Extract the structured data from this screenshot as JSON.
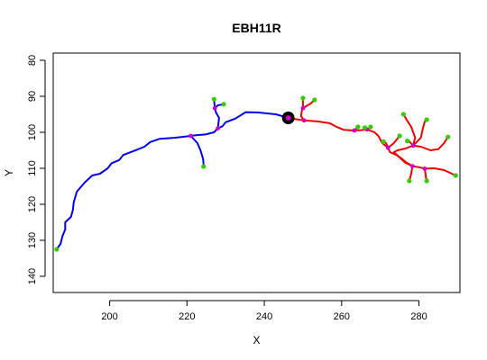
{
  "chart_data": {
    "type": "line",
    "title": "EBH11R",
    "xlabel": "X",
    "ylabel": "Y",
    "xlim": [
      185.4,
      290.6
    ],
    "ylim": [
      144.5,
      78.0
    ],
    "x_ticks": [
      200,
      220,
      240,
      260,
      280
    ],
    "y_ticks": [
      80,
      90,
      100,
      110,
      120,
      130,
      140
    ],
    "grid": false,
    "soma": {
      "x": 246.2,
      "y": 96.0
    },
    "colors": {
      "axon": "#0000ee",
      "dendrite": "#ee0000",
      "end": "#33cc00",
      "branch": "#cc00cc",
      "soma": "#000000"
    },
    "series": [
      {
        "kind": "axon",
        "branches": [
          [
            [
              246.2,
              96.0
            ],
            [
              243.0,
              95.0
            ],
            [
              238.5,
              94.5
            ],
            [
              235.2,
              94.4
            ],
            [
              232.5,
              96.2
            ],
            [
              230.0,
              97.2
            ],
            [
              229.2,
              98.3
            ],
            [
              228.0,
              98.9
            ],
            [
              227.0,
              100.0
            ],
            [
              224.8,
              100.6
            ],
            [
              222.3,
              100.8
            ],
            [
              221.0,
              101.0
            ]
          ],
          [
            [
              221.0,
              101.0
            ],
            [
              217.0,
              101.5
            ],
            [
              213.0,
              101.8
            ],
            [
              210.5,
              102.7
            ],
            [
              209.0,
              104.0
            ],
            [
              206.0,
              105.3
            ],
            [
              203.5,
              106.3
            ],
            [
              202.5,
              107.7
            ],
            [
              200.5,
              108.6
            ],
            [
              199.5,
              110.0
            ],
            [
              197.5,
              111.5
            ],
            [
              195.5,
              112.0
            ],
            [
              193.5,
              114.0
            ],
            [
              191.5,
              116.5
            ],
            [
              190.7,
              119.5
            ],
            [
              190.5,
              121.5
            ],
            [
              190.0,
              123.5
            ],
            [
              188.5,
              125.0
            ],
            [
              188.5,
              127.0
            ],
            [
              187.8,
              128.8
            ],
            [
              187.3,
              131.0
            ],
            [
              186.3,
              132.5
            ]
          ],
          [
            [
              221.0,
              101.0
            ],
            [
              222.7,
              103.0
            ],
            [
              223.5,
              105.0
            ],
            [
              224.2,
              107.5
            ],
            [
              224.3,
              109.5
            ]
          ],
          [
            [
              228.0,
              98.9
            ],
            [
              228.3,
              96.0
            ],
            [
              227.5,
              94.5
            ],
            [
              227.2,
              93.3
            ]
          ],
          [
            [
              227.2,
              93.3
            ],
            [
              227.0,
              90.8
            ]
          ],
          [
            [
              227.2,
              93.3
            ],
            [
              228.0,
              92.5
            ],
            [
              229.5,
              92.2
            ]
          ]
        ],
        "branch_points": [
          [
            221.0,
            101.0
          ],
          [
            228.0,
            98.9
          ],
          [
            227.2,
            93.3
          ]
        ],
        "end_points": [
          [
            186.3,
            132.5
          ],
          [
            224.3,
            109.5
          ],
          [
            227.0,
            90.8
          ],
          [
            229.5,
            92.2
          ]
        ]
      },
      {
        "kind": "dendrite",
        "branches": [
          [
            [
              246.2,
              96.0
            ],
            [
              248.5,
              96.4
            ],
            [
              250.3,
              96.7
            ]
          ],
          [
            [
              250.3,
              96.7
            ],
            [
              249.5,
              95.5
            ],
            [
              249.7,
              94.0
            ],
            [
              250.0,
              93.3
            ]
          ],
          [
            [
              250.0,
              93.3
            ],
            [
              250.0,
              92.0
            ],
            [
              250.0,
              90.5
            ]
          ],
          [
            [
              250.0,
              93.3
            ],
            [
              252.0,
              92.0
            ],
            [
              253.0,
              91.0
            ]
          ],
          [
            [
              250.3,
              96.7
            ],
            [
              254.0,
              97.0
            ],
            [
              257.0,
              97.5
            ],
            [
              258.5,
              98.4
            ],
            [
              260.5,
              99.3
            ],
            [
              263.3,
              99.5
            ]
          ],
          [
            [
              263.3,
              99.5
            ],
            [
              264.2,
              98.5
            ]
          ],
          [
            [
              263.3,
              99.5
            ],
            [
              265.0,
              99.4
            ],
            [
              266.5,
              99.2
            ]
          ],
          [
            [
              266.5,
              99.2
            ],
            [
              266.0,
              98.7
            ]
          ],
          [
            [
              266.5,
              99.2
            ],
            [
              267.3,
              98.8
            ],
            [
              267.5,
              98.5
            ]
          ],
          [
            [
              266.5,
              99.2
            ],
            [
              268.5,
              100.0
            ],
            [
              269.5,
              101.0
            ],
            [
              270.5,
              103.0
            ],
            [
              272.0,
              104.3
            ]
          ],
          [
            [
              272.0,
              104.3
            ],
            [
              271.5,
              103.0
            ],
            [
              270.8,
              102.6
            ]
          ],
          [
            [
              272.0,
              104.3
            ],
            [
              273.5,
              103.0
            ],
            [
              275.0,
              101.0
            ]
          ],
          [
            [
              272.0,
              104.3
            ],
            [
              272.5,
              105.5
            ],
            [
              274.5,
              106.5
            ],
            [
              275.5,
              107.3
            ],
            [
              276.5,
              108.2
            ],
            [
              278.3,
              109.4
            ]
          ],
          [
            [
              278.3,
              109.4
            ],
            [
              278.0,
              111.5
            ],
            [
              277.5,
              113.5
            ]
          ],
          [
            [
              278.3,
              109.4
            ],
            [
              280.0,
              109.7
            ],
            [
              281.5,
              110.1
            ]
          ],
          [
            [
              281.5,
              110.1
            ],
            [
              281.8,
              112.5
            ],
            [
              282.0,
              113.5
            ]
          ],
          [
            [
              281.5,
              110.1
            ],
            [
              284.0,
              110.0
            ],
            [
              286.5,
              110.5
            ],
            [
              288.5,
              111.5
            ],
            [
              289.5,
              112.0
            ]
          ],
          [
            [
              278.3,
              109.4
            ],
            [
              276.5,
              108.5
            ],
            [
              273.5,
              105.5
            ],
            [
              274.5,
              105.0
            ],
            [
              276.5,
              104.5
            ],
            [
              278.5,
              103.7
            ]
          ],
          [
            [
              278.5,
              103.7
            ],
            [
              277.5,
              102.5
            ],
            [
              277.0,
              102.4
            ]
          ],
          [
            [
              278.5,
              103.7
            ],
            [
              279.0,
              101.5
            ],
            [
              278.0,
              98.5
            ],
            [
              276.7,
              96.3
            ],
            [
              276.0,
              95.0
            ]
          ],
          [
            [
              278.5,
              103.7
            ],
            [
              280.5,
              104.0
            ],
            [
              283.0,
              105.0
            ],
            [
              285.0,
              104.7
            ],
            [
              286.5,
              103.0
            ],
            [
              287.5,
              101.3
            ]
          ],
          [
            [
              278.5,
              103.7
            ],
            [
              280.5,
              101.5
            ],
            [
              281.0,
              99.0
            ],
            [
              281.5,
              97.0
            ],
            [
              282.0,
              96.5
            ]
          ]
        ],
        "branch_points": [
          [
            250.3,
            96.7
          ],
          [
            250.0,
            93.3
          ],
          [
            263.3,
            99.5
          ],
          [
            266.5,
            99.2
          ],
          [
            272.0,
            104.3
          ],
          [
            278.3,
            109.4
          ],
          [
            281.5,
            110.1
          ],
          [
            278.5,
            103.7
          ]
        ],
        "end_points": [
          [
            250.0,
            90.5
          ],
          [
            253.0,
            91.0
          ],
          [
            264.2,
            98.5
          ],
          [
            266.0,
            98.7
          ],
          [
            267.5,
            98.5
          ],
          [
            270.8,
            102.6
          ],
          [
            275.0,
            101.0
          ],
          [
            277.5,
            113.5
          ],
          [
            282.0,
            113.5
          ],
          [
            289.5,
            112.0
          ],
          [
            277.0,
            102.4
          ],
          [
            276.0,
            95.0
          ],
          [
            287.5,
            101.3
          ],
          [
            282.0,
            96.5
          ]
        ]
      }
    ]
  }
}
